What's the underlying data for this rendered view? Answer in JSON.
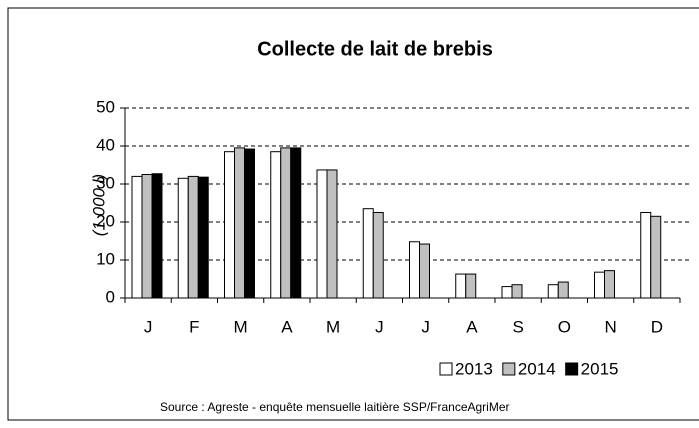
{
  "chart_data": {
    "type": "bar",
    "title": "Collecte de lait de brebis",
    "y_label": "(1 000 l)",
    "categories": [
      "J",
      "F",
      "M",
      "A",
      "M",
      "J",
      "J",
      "A",
      "S",
      "O",
      "N",
      "D"
    ],
    "series": [
      {
        "name": "2013",
        "color": "#ffffff",
        "values": [
          32,
          31.5,
          38.5,
          38.5,
          33.7,
          23.5,
          14.8,
          6.3,
          3,
          3.5,
          6.8,
          22.5
        ]
      },
      {
        "name": "2014",
        "color": "#c0c0c0",
        "values": [
          32.5,
          32,
          39.5,
          39.5,
          33.7,
          22.5,
          14.2,
          6.3,
          3.5,
          4.2,
          7.2,
          21.5
        ]
      },
      {
        "name": "2015",
        "color": "#000000",
        "values": [
          32.7,
          31.8,
          39.2,
          39.5,
          null,
          null,
          null,
          null,
          null,
          null,
          null,
          null
        ]
      }
    ],
    "ylim": [
      0,
      50
    ],
    "yticks": [
      0,
      10,
      20,
      30,
      40,
      50
    ],
    "grid": true,
    "source": "Source : Agreste - enquête mensuelle laitière SSP/FranceAgriMer"
  }
}
